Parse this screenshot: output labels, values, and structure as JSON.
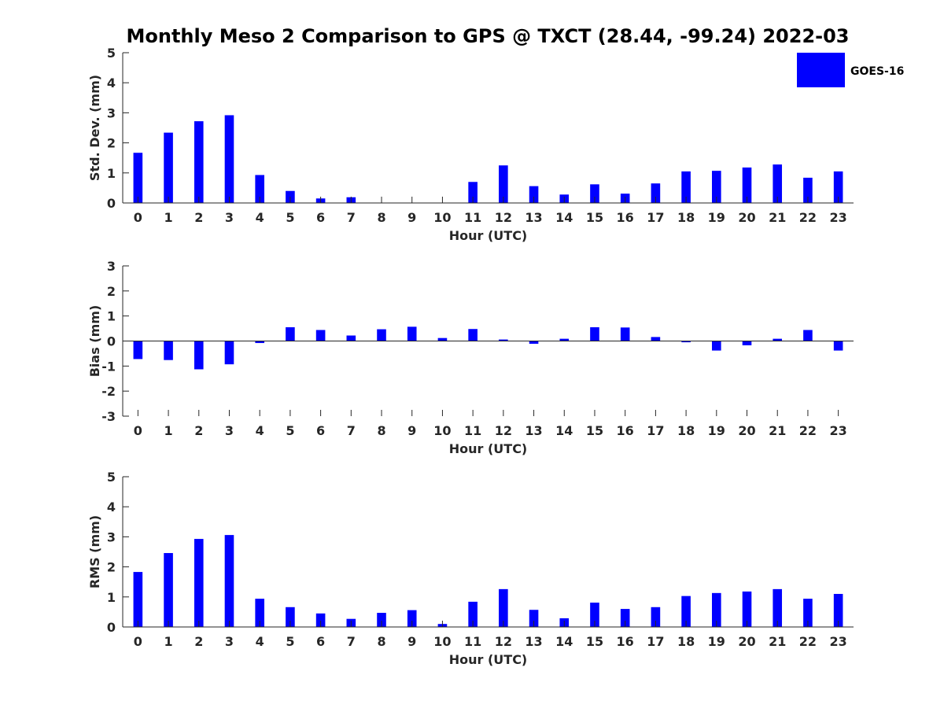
{
  "figure": {
    "title": "Monthly Meso 2 Comparison to GPS @ TXCT (28.44, -99.24) 2022-03",
    "bar_color": "#0000ff",
    "axis_color": "#262626"
  },
  "legend": {
    "label": "GOES-16",
    "placement": "top-right"
  },
  "chart_data": [
    {
      "type": "bar",
      "xlabel": "Hour (UTC)",
      "ylabel": "Std. Dev. (mm)",
      "ylim": [
        0,
        5
      ],
      "yticks": [
        0,
        1,
        2,
        3,
        4,
        5
      ],
      "grid": false,
      "categories": [
        "0",
        "1",
        "2",
        "3",
        "4",
        "5",
        "6",
        "7",
        "8",
        "9",
        "10",
        "11",
        "12",
        "13",
        "14",
        "15",
        "16",
        "17",
        "18",
        "19",
        "20",
        "21",
        "22",
        "23"
      ],
      "series": [
        {
          "name": "GOES-16",
          "values": [
            1.67,
            2.34,
            2.72,
            2.92,
            0.93,
            0.4,
            0.15,
            0.19,
            0.0,
            0.0,
            0.0,
            0.7,
            1.25,
            0.56,
            0.28,
            0.62,
            0.31,
            0.65,
            1.05,
            1.07,
            1.18,
            1.28,
            0.84,
            1.05
          ]
        }
      ]
    },
    {
      "type": "bar",
      "xlabel": "Hour (UTC)",
      "ylabel": "Bias (mm)",
      "ylim": [
        -3,
        3
      ],
      "yticks": [
        -3,
        -2,
        -1,
        0,
        1,
        2,
        3
      ],
      "grid": false,
      "categories": [
        "0",
        "1",
        "2",
        "3",
        "4",
        "5",
        "6",
        "7",
        "8",
        "9",
        "10",
        "11",
        "12",
        "13",
        "14",
        "15",
        "16",
        "17",
        "18",
        "19",
        "20",
        "21",
        "22",
        "23"
      ],
      "series": [
        {
          "name": "GOES-16",
          "values": [
            -0.72,
            -0.76,
            -1.13,
            -0.93,
            -0.08,
            0.55,
            0.44,
            0.22,
            0.47,
            0.57,
            0.12,
            0.48,
            0.06,
            -0.11,
            0.09,
            0.55,
            0.54,
            0.16,
            -0.05,
            -0.38,
            -0.17,
            0.09,
            0.44,
            -0.38
          ]
        }
      ]
    },
    {
      "type": "bar",
      "xlabel": "Hour (UTC)",
      "ylabel": "RMS (mm)",
      "ylim": [
        0,
        5
      ],
      "yticks": [
        0,
        1,
        2,
        3,
        4,
        5
      ],
      "grid": false,
      "categories": [
        "0",
        "1",
        "2",
        "3",
        "4",
        "5",
        "6",
        "7",
        "8",
        "9",
        "10",
        "11",
        "12",
        "13",
        "14",
        "15",
        "16",
        "17",
        "18",
        "19",
        "20",
        "21",
        "22",
        "23"
      ],
      "series": [
        {
          "name": "GOES-16",
          "values": [
            1.83,
            2.46,
            2.93,
            3.06,
            0.94,
            0.66,
            0.45,
            0.27,
            0.47,
            0.56,
            0.1,
            0.84,
            1.26,
            0.57,
            0.29,
            0.81,
            0.6,
            0.66,
            1.03,
            1.13,
            1.18,
            1.26,
            0.94,
            1.1
          ]
        }
      ]
    }
  ]
}
